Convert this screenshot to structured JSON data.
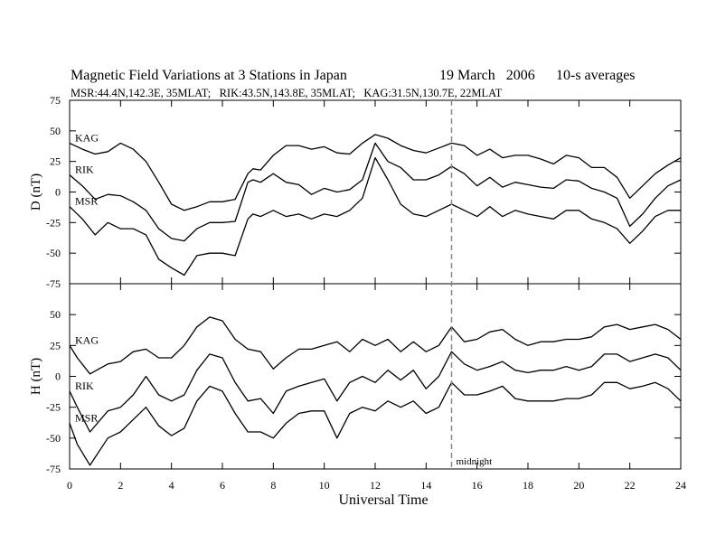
{
  "chart_data": {
    "type": "line",
    "title": "Magnetic Field Variations at 3 Stations in Japan",
    "date": "19 March   2006",
    "averaging": "10-s averages",
    "subtitle": "MSR:44.4N,142.3E, 35MLAT;   RIK:43.5N,143.8E, 35MLAT;   KAG:31.5N,130.7E, 22MLAT",
    "xlabel": "Universal Time",
    "xlim": [
      0,
      24
    ],
    "x_ticks": [
      "0",
      "2",
      "4",
      "6",
      "8",
      "10",
      "12",
      "14",
      "16",
      "18",
      "20",
      "22",
      "24"
    ],
    "annotation": {
      "text": "midnight",
      "x": 15
    },
    "panels": [
      {
        "ylabel": "D (nT)",
        "ylim": [
          -75,
          75
        ],
        "y_ticks": [
          "75",
          "50",
          "25",
          "0",
          "-25",
          "-50",
          "-75"
        ],
        "series": [
          {
            "name": "KAG",
            "x": [
              0,
              0.5,
              1,
              1.5,
              2,
              2.5,
              3,
              3.5,
              4,
              4.5,
              5,
              5.5,
              6,
              6.5,
              7,
              7.2,
              7.5,
              8,
              8.5,
              9,
              9.5,
              10,
              10.5,
              11,
              11.5,
              12,
              12.5,
              13,
              13.5,
              14,
              14.5,
              15,
              15.5,
              16,
              16.5,
              17,
              17.5,
              18,
              18.5,
              19,
              19.5,
              20,
              20.5,
              21,
              21.5,
              22,
              22.5,
              23,
              23.5,
              24
            ],
            "y": [
              40,
              35,
              31,
              33,
              40,
              35,
              25,
              8,
              -10,
              -15,
              -12,
              -8,
              -8,
              -6,
              15,
              19,
              18,
              30,
              38,
              38,
              35,
              37,
              32,
              31,
              40,
              47,
              44,
              38,
              34,
              32,
              36,
              40,
              38,
              30,
              35,
              28,
              30,
              30,
              27,
              23,
              30,
              28,
              20,
              20,
              12,
              -5,
              5,
              15,
              22,
              28
            ]
          },
          {
            "name": "RIK",
            "x": [
              0,
              0.5,
              1,
              1.5,
              2,
              2.5,
              3,
              3.5,
              4,
              4.5,
              5,
              5.5,
              6,
              6.5,
              7,
              7.2,
              7.5,
              8,
              8.5,
              9,
              9.5,
              10,
              10.5,
              11,
              11.5,
              12,
              12.5,
              13,
              13.5,
              14,
              14.5,
              15,
              15.5,
              16,
              16.5,
              17,
              17.5,
              18,
              18.5,
              19,
              19.5,
              20,
              20.5,
              21,
              21.5,
              22,
              22.5,
              23,
              23.5,
              24
            ],
            "y": [
              14,
              5,
              -6,
              -2,
              -3,
              -8,
              -15,
              -30,
              -38,
              -40,
              -30,
              -25,
              -25,
              -24,
              8,
              10,
              8,
              15,
              8,
              6,
              -2,
              3,
              0,
              2,
              10,
              40,
              25,
              20,
              10,
              10,
              14,
              21,
              15,
              5,
              12,
              4,
              8,
              6,
              4,
              3,
              10,
              9,
              3,
              0,
              -5,
              -28,
              -18,
              -5,
              5,
              10
            ]
          },
          {
            "name": "MSR",
            "x": [
              0,
              0.5,
              1,
              1.5,
              2,
              2.5,
              3,
              3.5,
              4,
              4.5,
              5,
              5.5,
              6,
              6.5,
              7,
              7.2,
              7.5,
              8,
              8.5,
              9,
              9.5,
              10,
              10.5,
              11,
              11.5,
              12,
              12.5,
              13,
              13.5,
              14,
              14.5,
              15,
              15.5,
              16,
              16.5,
              17,
              17.5,
              18,
              18.5,
              19,
              19.5,
              20,
              20.5,
              21,
              21.5,
              22,
              22.5,
              23,
              23.5,
              24
            ],
            "y": [
              -12,
              -22,
              -35,
              -25,
              -30,
              -30,
              -35,
              -55,
              -62,
              -68,
              -52,
              -50,
              -50,
              -52,
              -22,
              -18,
              -20,
              -15,
              -20,
              -18,
              -22,
              -18,
              -20,
              -15,
              -5,
              28,
              10,
              -10,
              -18,
              -20,
              -15,
              -10,
              -15,
              -20,
              -12,
              -20,
              -15,
              -18,
              -20,
              -22,
              -15,
              -15,
              -22,
              -25,
              -30,
              -42,
              -32,
              -20,
              -15,
              -15
            ]
          }
        ]
      },
      {
        "ylabel": "H (nT)",
        "ylim": [
          -75,
          75
        ],
        "y_ticks": [
          "75",
          "50",
          "25",
          "0",
          "-25",
          "-50",
          "-75"
        ],
        "series": [
          {
            "name": "KAG",
            "x": [
              0,
              0.3,
              0.8,
              1.5,
              2,
              2.5,
              3,
              3.5,
              4,
              4.5,
              5,
              5.5,
              6,
              6.5,
              7,
              7.5,
              8,
              8.5,
              9,
              9.5,
              10,
              10.5,
              11,
              11.5,
              12,
              12.5,
              13,
              13.5,
              14,
              14.5,
              15,
              15.5,
              16,
              16.5,
              17,
              17.5,
              18,
              18.5,
              19,
              19.5,
              20,
              20.5,
              21,
              21.5,
              22,
              22.5,
              23,
              23.5,
              24
            ],
            "y": [
              25,
              15,
              2,
              10,
              12,
              20,
              22,
              15,
              15,
              25,
              40,
              48,
              45,
              30,
              22,
              20,
              6,
              15,
              22,
              22,
              25,
              28,
              20,
              30,
              25,
              30,
              20,
              28,
              20,
              25,
              40,
              28,
              30,
              36,
              38,
              30,
              25,
              28,
              28,
              30,
              30,
              32,
              40,
              42,
              38,
              40,
              42,
              38,
              30
            ]
          },
          {
            "name": "RIK",
            "x": [
              0,
              0.3,
              0.8,
              1.5,
              2,
              2.5,
              3,
              3.5,
              4,
              4.5,
              5,
              5.5,
              6,
              6.5,
              7,
              7.5,
              8,
              8.5,
              9,
              9.5,
              10,
              10.5,
              11,
              11.5,
              12,
              12.5,
              13,
              13.5,
              14,
              14.5,
              15,
              15.5,
              16,
              16.5,
              17,
              17.5,
              18,
              18.5,
              19,
              19.5,
              20,
              20.5,
              21,
              21.5,
              22,
              22.5,
              23,
              23.5,
              24
            ],
            "y": [
              -12,
              -25,
              -45,
              -28,
              -25,
              -15,
              0,
              -15,
              -20,
              -15,
              5,
              18,
              15,
              -5,
              -20,
              -18,
              -30,
              -12,
              -8,
              -5,
              -2,
              -20,
              -5,
              0,
              -5,
              5,
              -3,
              5,
              -10,
              0,
              20,
              10,
              5,
              8,
              12,
              5,
              3,
              5,
              5,
              8,
              5,
              8,
              18,
              18,
              12,
              15,
              18,
              15,
              5
            ]
          },
          {
            "name": "MSR",
            "x": [
              0,
              0.3,
              0.8,
              1.5,
              2,
              2.5,
              3,
              3.5,
              4,
              4.5,
              5,
              5.5,
              6,
              6.5,
              7,
              7.5,
              8,
              8.5,
              9,
              9.5,
              10,
              10.5,
              11,
              11.5,
              12,
              12.5,
              13,
              13.5,
              14,
              14.5,
              15,
              15.5,
              16,
              16.5,
              17,
              17.5,
              18,
              18.5,
              19,
              19.5,
              20,
              20.5,
              21,
              21.5,
              22,
              22.5,
              23,
              23.5,
              24
            ],
            "y": [
              -38,
              -55,
              -72,
              -50,
              -45,
              -35,
              -25,
              -40,
              -48,
              -42,
              -20,
              -8,
              -12,
              -30,
              -45,
              -45,
              -50,
              -38,
              -30,
              -28,
              -28,
              -50,
              -30,
              -25,
              -28,
              -20,
              -25,
              -20,
              -30,
              -25,
              -5,
              -15,
              -15,
              -12,
              -8,
              -18,
              -20,
              -20,
              -20,
              -18,
              -18,
              -15,
              -5,
              -5,
              -10,
              -8,
              -5,
              -10,
              -20
            ]
          }
        ]
      }
    ]
  }
}
